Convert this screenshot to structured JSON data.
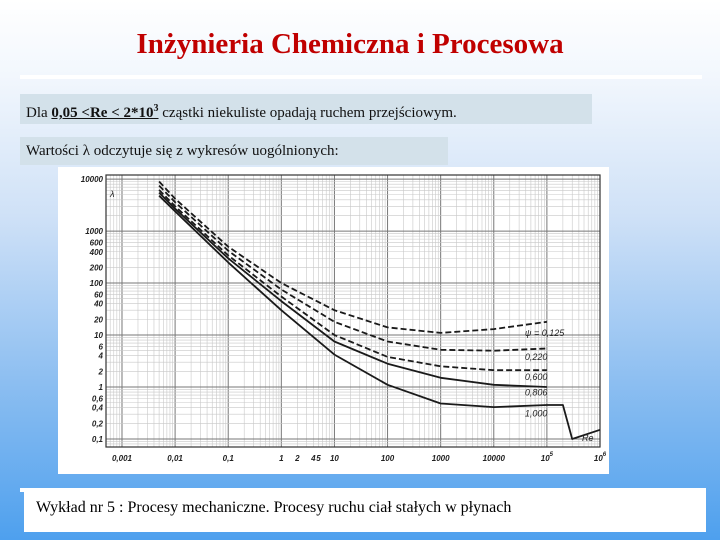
{
  "slide": {
    "title": "Inżynieria Chemiczna i Procesowa",
    "box1": {
      "prefix": "Dla ",
      "range": "0,05 <Re < 2*10",
      "range_exp": "3",
      "suffix": " cząstki niekuliste opadają ruchem przejściowym."
    },
    "box2": "Wartości λ odczytuje się z wykresów uogólnionych:",
    "footer": "Wykład nr 5  : Procesy mechaniczne.  Procesy ruchu ciał stałych w płynach"
  },
  "chart_data": {
    "type": "line",
    "xscale": "log",
    "yscale": "log",
    "xlim": [
      0.0005,
      1000000
    ],
    "ylim": [
      0.07,
      12000
    ],
    "xlabel": "Re",
    "ylabel": "λ",
    "grid": true,
    "x_ticks": [
      "0,001",
      "0,01",
      "0,1",
      "1",
      "2",
      "4",
      "5",
      "10",
      "100",
      "1000",
      "10000",
      "10",
      "10"
    ],
    "x_tick_exponents": [
      "",
      "",
      "",
      "",
      "",
      "",
      "",
      "",
      "",
      "",
      "",
      "5",
      "6"
    ],
    "y_ticks": [
      "10000",
      "1000",
      "600",
      "400",
      "200",
      "100",
      "60",
      "40",
      "20",
      "10",
      "6",
      "4",
      "2",
      "1",
      "0,6",
      "0,4",
      "0,2",
      "0,1"
    ],
    "series": [
      {
        "name": "ψ = 0,125",
        "style": "dashed",
        "x": [
          0.005,
          0.01,
          0.1,
          1,
          10,
          100,
          1000,
          10000,
          100000
        ],
        "y": [
          9000,
          4200,
          500,
          100,
          30,
          14,
          11,
          13,
          18
        ]
      },
      {
        "name": "0,220",
        "style": "dashed",
        "x": [
          0.005,
          0.01,
          0.1,
          1,
          10,
          100,
          1000,
          10000,
          100000
        ],
        "y": [
          7500,
          3600,
          420,
          75,
          18,
          7.5,
          5.2,
          5.0,
          5.5
        ]
      },
      {
        "name": "0,600",
        "style": "dashed",
        "x": [
          0.005,
          0.01,
          0.1,
          1,
          10,
          100,
          1000,
          10000,
          100000
        ],
        "y": [
          6200,
          3000,
          340,
          55,
          10,
          3.8,
          2.5,
          2.1,
          2.1
        ]
      },
      {
        "name": "0,806",
        "style": "solid",
        "x": [
          0.005,
          0.01,
          0.1,
          1,
          10,
          100,
          1000,
          10000,
          100000
        ],
        "y": [
          5500,
          2700,
          300,
          45,
          7.5,
          2.8,
          1.5,
          1.1,
          1.0
        ]
      },
      {
        "name": "1,000",
        "style": "solid",
        "x": [
          0.005,
          0.01,
          0.1,
          1,
          10,
          100,
          1000,
          10000,
          100000,
          200000,
          300000,
          1000000
        ],
        "y": [
          4800,
          2400,
          250,
          30,
          4.2,
          1.1,
          0.48,
          0.41,
          0.45,
          0.45,
          0.1,
          0.15
        ]
      }
    ]
  }
}
